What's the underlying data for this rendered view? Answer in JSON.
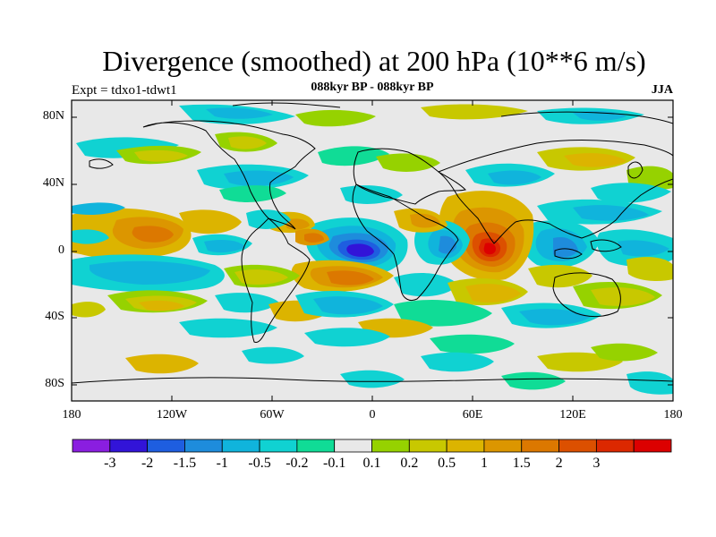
{
  "title": "Divergence (smoothed) at 200 hPa (10**6 m/s)",
  "subtitle": "088kyr BP - 088kyr BP",
  "left_label": "Expt = tdxo1-tdwt1",
  "right_label": "JJA",
  "lat_labels": [
    "80N",
    "40N",
    "0",
    "40S",
    "80S"
  ],
  "lon_labels": [
    "180",
    "120W",
    "60W",
    "0",
    "60E",
    "120E",
    "180"
  ],
  "colorbar": {
    "colors": [
      "#8a1ee0",
      "#3214d8",
      "#1e5ee0",
      "#1e8cdc",
      "#10b4dc",
      "#10d2d2",
      "#10dc96",
      "#e8e8e8",
      "#96d200",
      "#c8c800",
      "#dcb400",
      "#dc9600",
      "#dc7800",
      "#dc5000",
      "#dc2800",
      "#dc0000"
    ],
    "labels": [
      "-3",
      "-2",
      "-1.5",
      "-1",
      "-0.5",
      "-0.2",
      "-0.1",
      "0.1",
      "0.2",
      "0.5",
      "1",
      "1.5",
      "2",
      "3"
    ]
  }
}
